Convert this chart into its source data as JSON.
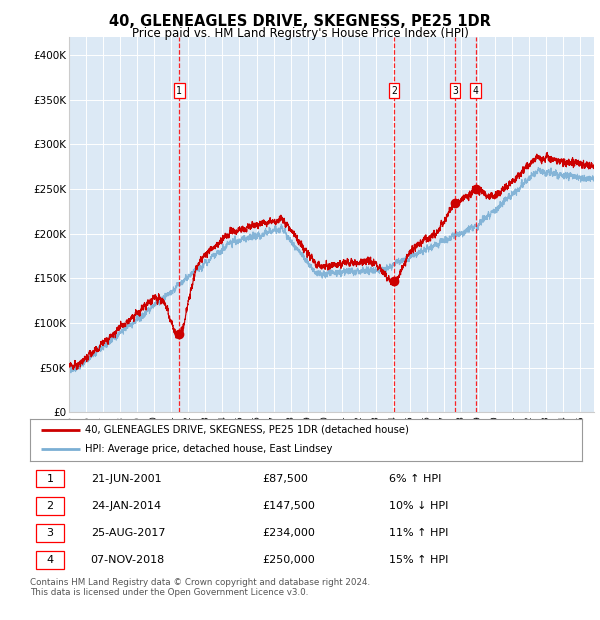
{
  "title": "40, GLENEAGLES DRIVE, SKEGNESS, PE25 1DR",
  "subtitle": "Price paid vs. HM Land Registry's House Price Index (HPI)",
  "bg_color": "#dce9f5",
  "red_line_color": "#cc0000",
  "blue_line_color": "#7bafd4",
  "ylim": [
    0,
    420000
  ],
  "yticks": [
    0,
    50000,
    100000,
    150000,
    200000,
    250000,
    300000,
    350000,
    400000
  ],
  "ytick_labels": [
    "£0",
    "£50K",
    "£100K",
    "£150K",
    "£200K",
    "£250K",
    "£300K",
    "£350K",
    "£400K"
  ],
  "xlim_start": 1995.0,
  "xlim_end": 2025.8,
  "transactions": [
    {
      "id": 1,
      "date_x": 2001.47,
      "price": 87500
    },
    {
      "id": 2,
      "date_x": 2014.07,
      "price": 147500
    },
    {
      "id": 3,
      "date_x": 2017.65,
      "price": 234000
    },
    {
      "id": 4,
      "date_x": 2018.85,
      "price": 250000
    }
  ],
  "legend_line1": "40, GLENEAGLES DRIVE, SKEGNESS, PE25 1DR (detached house)",
  "legend_line2": "HPI: Average price, detached house, East Lindsey",
  "footnote": "Contains HM Land Registry data © Crown copyright and database right 2024.\nThis data is licensed under the Open Government Licence v3.0.",
  "table_rows": [
    {
      "id": 1,
      "date": "21-JUN-2001",
      "price": "£87,500",
      "pct": "6% ↑ HPI"
    },
    {
      "id": 2,
      "date": "24-JAN-2014",
      "price": "£147,500",
      "pct": "10% ↓ HPI"
    },
    {
      "id": 3,
      "date": "25-AUG-2017",
      "price": "£234,000",
      "pct": "11% ↑ HPI"
    },
    {
      "id": 4,
      "date": "07-NOV-2018",
      "price": "£250,000",
      "pct": "15% ↑ HPI"
    }
  ]
}
